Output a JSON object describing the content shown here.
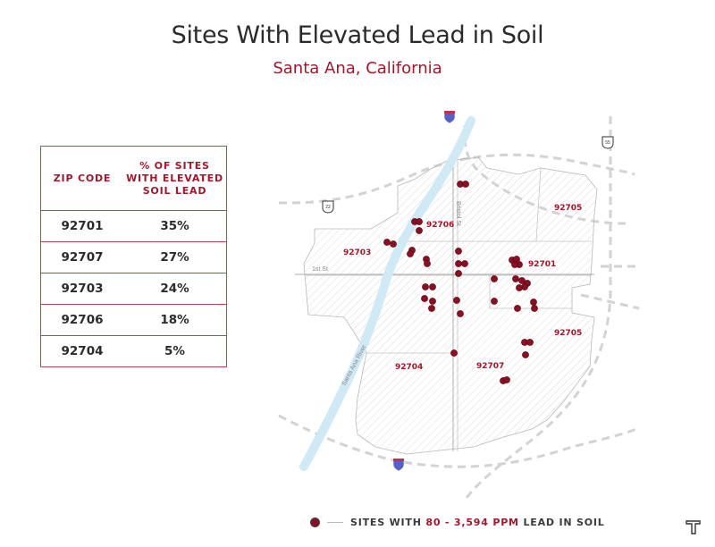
{
  "title": "Sites With Elevated Lead in Soil",
  "subtitle": "Santa Ana, California",
  "table": {
    "col1_header": "ZIP CODE",
    "col2_header_lines": [
      "% OF SITES",
      "WITH ELEVATED",
      "SOIL LEAD"
    ],
    "rows": [
      {
        "zip": "92701",
        "pct": "35%"
      },
      {
        "zip": "92707",
        "pct": "27%"
      },
      {
        "zip": "92703",
        "pct": "24%"
      },
      {
        "zip": "92706",
        "pct": "18%"
      },
      {
        "zip": "92704",
        "pct": "5%"
      }
    ]
  },
  "map": {
    "zip_labels": [
      "92705",
      "92706",
      "92703",
      "92701",
      "92705",
      "92704",
      "92707"
    ],
    "street_labels": [
      "Bristol St",
      "1st St",
      "Santa Ana River"
    ],
    "shield_labels": [
      "22",
      "55"
    ]
  },
  "legend": {
    "prefix": "SITES WITH",
    "range": "80 - 3,594 PPM",
    "suffix": "LEAD IN SOIL"
  },
  "colors": {
    "accent": "#a3162b",
    "site_marker": "#8a0f22",
    "river": "#cfe9f5",
    "road": "#cfcfcf",
    "interstate_shield": "#5561c9"
  }
}
